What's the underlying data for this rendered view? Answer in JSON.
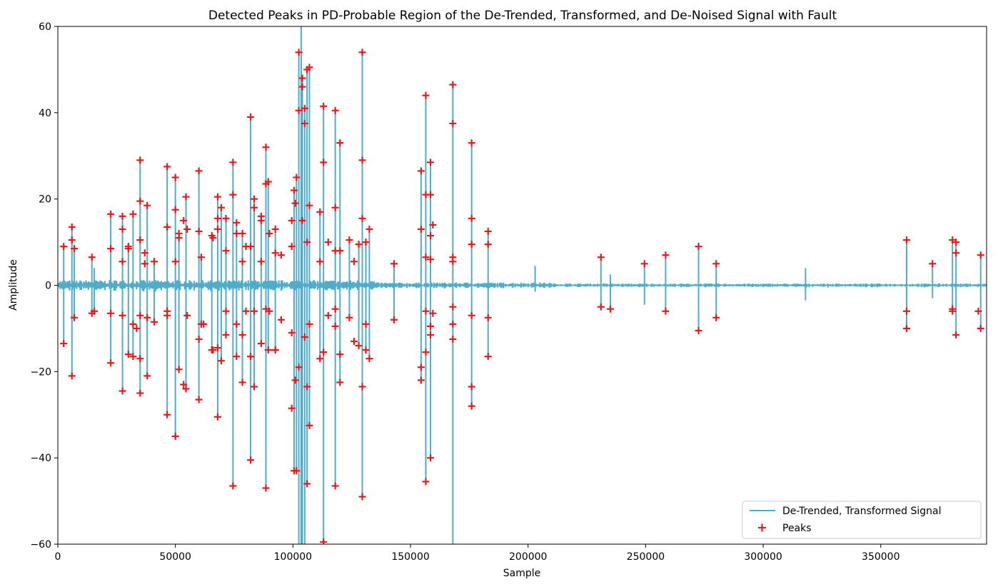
{
  "chart_data": {
    "type": "line",
    "title": "Detected Peaks in PD-Probable Region of the De-Trended, Transformed, and De-Noised Signal with Fault",
    "xlabel": "Sample",
    "ylabel": "Amplitude",
    "xlim": [
      0,
      395000
    ],
    "ylim": [
      -60,
      60
    ],
    "xticks": [
      0,
      50000,
      100000,
      150000,
      200000,
      250000,
      300000,
      350000
    ],
    "yticks": [
      -60,
      -40,
      -20,
      0,
      20,
      40,
      60
    ],
    "grid": false,
    "legend_position": "lower-right",
    "colors": {
      "signal": "#4fadcb",
      "peaks": "#e8191b"
    },
    "series": [
      {
        "name": "De-Trended, Transformed Signal",
        "kind": "line"
      },
      {
        "name": "Peaks",
        "kind": "scatter",
        "marker": "+"
      }
    ],
    "spikes": [
      [
        2500,
        9,
        -13.5
      ],
      [
        6000,
        13.5,
        -21
      ],
      [
        7000,
        8.5,
        -7.5
      ],
      [
        14500,
        6.5,
        -6.5
      ],
      [
        15500,
        4,
        -6
      ],
      [
        22500,
        16.5,
        -18
      ],
      [
        27500,
        16,
        -24.5
      ],
      [
        30000,
        9,
        -16
      ],
      [
        32000,
        16.5,
        -16.5
      ],
      [
        35000,
        29,
        -25
      ],
      [
        38000,
        18.5,
        -21
      ],
      [
        41000,
        5.5,
        -8.5
      ],
      [
        46500,
        27.5,
        -30
      ],
      [
        50000,
        25,
        -35
      ],
      [
        51500,
        12,
        -19.5
      ],
      [
        54500,
        20.5,
        -24
      ],
      [
        60000,
        26.5,
        -26.5
      ],
      [
        61000,
        6.5,
        -9
      ],
      [
        65500,
        11.5,
        -15
      ],
      [
        68000,
        20.5,
        -30.5
      ],
      [
        69500,
        18,
        -17.5
      ],
      [
        71500,
        15.5,
        -11.5
      ],
      [
        74500,
        28.5,
        -46.5
      ],
      [
        76000,
        14.5,
        -16.5
      ],
      [
        78500,
        12,
        -22.5
      ],
      [
        82000,
        39,
        -40.5
      ],
      [
        83500,
        20,
        -23.5
      ],
      [
        86500,
        16,
        -13.5
      ],
      [
        88500,
        32,
        -47
      ],
      [
        89500,
        24,
        -15
      ],
      [
        92500,
        13,
        -15
      ],
      [
        100500,
        22,
        -43
      ],
      [
        101500,
        25,
        -43
      ],
      [
        102500,
        54,
        -60
      ],
      [
        103500,
        60,
        -60
      ],
      [
        104000,
        48,
        -60
      ],
      [
        105000,
        41,
        -60
      ],
      [
        106000,
        50,
        -46
      ],
      [
        107000,
        50.5,
        -32.5
      ],
      [
        111500,
        17,
        -17
      ],
      [
        113000,
        41.5,
        -59.5
      ],
      [
        118000,
        40.5,
        -46.5
      ],
      [
        120000,
        33,
        -22.5
      ],
      [
        124000,
        10.5,
        -7.5
      ],
      [
        128000,
        9.5,
        -14
      ],
      [
        129500,
        54,
        -49
      ],
      [
        131000,
        10,
        -15
      ],
      [
        132500,
        13,
        -17
      ],
      [
        143000,
        5,
        -8
      ],
      [
        154500,
        26.5,
        -22
      ],
      [
        156500,
        44,
        -45.5
      ],
      [
        158500,
        28.5,
        -40
      ],
      [
        168000,
        46.5,
        -60
      ],
      [
        176000,
        33,
        -28
      ],
      [
        183000,
        12.5,
        -16.5
      ],
      [
        203000,
        4.5,
        -1.5
      ],
      [
        231000,
        6.5,
        -5
      ],
      [
        235000,
        2.5,
        -5.5
      ],
      [
        249500,
        5,
        -4.5
      ],
      [
        258500,
        7,
        -6
      ],
      [
        272500,
        9,
        -10.5
      ],
      [
        280000,
        5,
        -7.5
      ],
      [
        318000,
        4,
        -3.5
      ],
      [
        361000,
        10.5,
        -10
      ],
      [
        372000,
        5,
        -3
      ],
      [
        380500,
        10.5,
        -6
      ],
      [
        382000,
        10,
        -11.5
      ],
      [
        392500,
        7,
        -10
      ]
    ],
    "extra_peaks": [
      [
        6000,
        10.5
      ],
      [
        22500,
        8.5
      ],
      [
        22500,
        -6.5
      ],
      [
        27500,
        13
      ],
      [
        27500,
        5.5
      ],
      [
        27500,
        -7
      ],
      [
        30000,
        8.5
      ],
      [
        32000,
        -9
      ],
      [
        33500,
        -10
      ],
      [
        35000,
        19.5
      ],
      [
        35000,
        10.5
      ],
      [
        35000,
        -17
      ],
      [
        35000,
        -7
      ],
      [
        37000,
        7.5
      ],
      [
        37000,
        5
      ],
      [
        38000,
        -7.5
      ],
      [
        46500,
        13.5
      ],
      [
        46500,
        -6
      ],
      [
        46500,
        -7
      ],
      [
        50000,
        17.5
      ],
      [
        50000,
        5.5
      ],
      [
        51500,
        11
      ],
      [
        53500,
        15
      ],
      [
        53500,
        -23
      ],
      [
        55000,
        13
      ],
      [
        55000,
        -7
      ],
      [
        60000,
        12.5
      ],
      [
        60000,
        -12.5
      ],
      [
        62000,
        -9
      ],
      [
        66000,
        11
      ],
      [
        66000,
        -15
      ],
      [
        68000,
        15.5
      ],
      [
        68000,
        13
      ],
      [
        68000,
        -14.5
      ],
      [
        71500,
        8
      ],
      [
        71500,
        -6
      ],
      [
        74500,
        21
      ],
      [
        76000,
        12
      ],
      [
        76000,
        -9
      ],
      [
        78500,
        5.5
      ],
      [
        78500,
        -11.5
      ],
      [
        80000,
        9
      ],
      [
        80000,
        -6
      ],
      [
        82000,
        9
      ],
      [
        82000,
        -16.5
      ],
      [
        83500,
        18
      ],
      [
        83500,
        -6
      ],
      [
        86500,
        15
      ],
      [
        86500,
        5.5
      ],
      [
        88500,
        23.5
      ],
      [
        88500,
        -5.5
      ],
      [
        90000,
        12
      ],
      [
        90000,
        -6
      ],
      [
        92500,
        7.5
      ],
      [
        92500,
        -15
      ],
      [
        95000,
        7
      ],
      [
        95000,
        -8
      ],
      [
        99500,
        15
      ],
      [
        99500,
        9
      ],
      [
        99500,
        -11
      ],
      [
        99500,
        -28.5
      ],
      [
        101000,
        19
      ],
      [
        101000,
        -22
      ],
      [
        102500,
        40.5
      ],
      [
        102500,
        -19
      ],
      [
        104000,
        46
      ],
      [
        104000,
        15
      ],
      [
        105000,
        37.5
      ],
      [
        105000,
        -12
      ],
      [
        106000,
        10
      ],
      [
        106000,
        -23.5
      ],
      [
        107000,
        18.5
      ],
      [
        107000,
        -9
      ],
      [
        111500,
        5.5
      ],
      [
        113000,
        28.5
      ],
      [
        113000,
        -15.5
      ],
      [
        115000,
        10
      ],
      [
        115000,
        -7
      ],
      [
        118000,
        18
      ],
      [
        118000,
        8
      ],
      [
        118000,
        -5.5
      ],
      [
        118000,
        -9.5
      ],
      [
        120000,
        8
      ],
      [
        120000,
        -16
      ],
      [
        126000,
        5.5
      ],
      [
        126000,
        -13
      ],
      [
        129500,
        29
      ],
      [
        129500,
        15.5
      ],
      [
        129500,
        -23.5
      ],
      [
        131000,
        -9
      ],
      [
        154500,
        13
      ],
      [
        154500,
        -19
      ],
      [
        156500,
        21
      ],
      [
        156500,
        6.5
      ],
      [
        156500,
        -6
      ],
      [
        156500,
        -15.5
      ],
      [
        158500,
        21
      ],
      [
        158500,
        11.5
      ],
      [
        158500,
        6
      ],
      [
        158500,
        -9.5
      ],
      [
        158500,
        -11.5
      ],
      [
        159500,
        14
      ],
      [
        159500,
        -6.5
      ],
      [
        168000,
        37.5
      ],
      [
        168000,
        6.5
      ],
      [
        168000,
        5.5
      ],
      [
        168000,
        -5
      ],
      [
        168000,
        -9
      ],
      [
        168000,
        -12.5
      ],
      [
        176000,
        15.5
      ],
      [
        176000,
        9.5
      ],
      [
        176000,
        -7
      ],
      [
        176000,
        -23.5
      ],
      [
        183000,
        9.5
      ],
      [
        183000,
        -7.5
      ],
      [
        361000,
        -6
      ],
      [
        380500,
        -5.5
      ],
      [
        382000,
        7.5
      ],
      [
        391500,
        -6
      ]
    ]
  }
}
